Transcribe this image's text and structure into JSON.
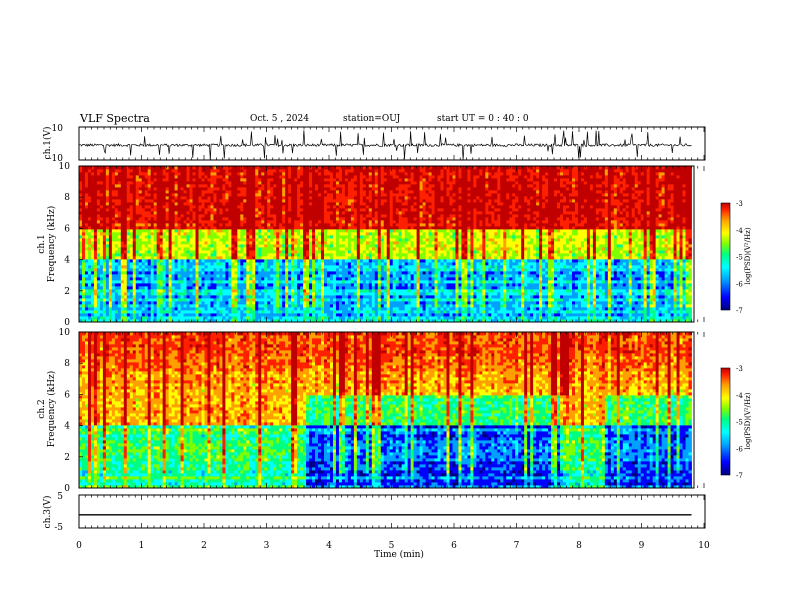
{
  "header": {
    "title": "VLF Spectra",
    "date": "Oct. 5 , 2024",
    "station": "station=OUJ",
    "start": "start  UT =   0 : 40 : 0"
  },
  "colors": {
    "colormap": [
      "#000080",
      "#0000ff",
      "#00a0ff",
      "#00ffff",
      "#00ff80",
      "#80ff00",
      "#ffff00",
      "#ffa000",
      "#ff2000",
      "#c00000"
    ],
    "trace": "#000000"
  },
  "chart_data": [
    {
      "type": "line",
      "ylabel": "ch.1(V)",
      "ylim": [
        -10,
        10
      ],
      "yticks": [
        "10",
        "-10"
      ],
      "baseline": -1,
      "description": "noisy waveform trace around -1 V with spikes"
    },
    {
      "type": "heatmap",
      "ylabel_top": "ch.1",
      "ylabel": "Frequency (kHz)",
      "ylim": [
        0,
        10
      ],
      "yticks": [
        "0",
        "2",
        "4",
        "6",
        "8",
        "10"
      ],
      "colorbar": {
        "label": "log(PSD)(V²/Hz)",
        "range": [
          -7,
          -3
        ],
        "ticks": [
          "-3",
          "-4",
          "-5",
          "-6",
          "-7"
        ]
      },
      "bands": [
        {
          "fmin": 0,
          "fmax": 4,
          "level": -5.8
        },
        {
          "fmin": 4,
          "fmax": 6,
          "level": -4.6
        },
        {
          "fmin": 6,
          "fmax": 10,
          "level": -3.4
        }
      ]
    },
    {
      "type": "heatmap",
      "ylabel_top": "ch.2",
      "ylabel": "Frequency (kHz)",
      "ylim": [
        0,
        10
      ],
      "yticks": [
        "0",
        "2",
        "4",
        "6",
        "8",
        "10"
      ],
      "colorbar": {
        "label": "log(PSD)(V²/Hz)",
        "range": [
          -7,
          -3
        ],
        "ticks": [
          "-3",
          "-4",
          "-5",
          "-6",
          "-7"
        ]
      },
      "segments": [
        {
          "tmin": 0,
          "tmax": 3.65,
          "low_level": -5.2
        },
        {
          "tmin": 3.65,
          "tmax": 7.85,
          "low_level": -6.2
        },
        {
          "tmin": 7.85,
          "tmax": 8.4,
          "low_level": -5.2
        },
        {
          "tmin": 8.4,
          "tmax": 9.8,
          "low_level": -6.2
        }
      ]
    },
    {
      "type": "line",
      "ylabel": "ch.3(V)",
      "ylim": [
        -5,
        5
      ],
      "yticks": [
        "5",
        "-5"
      ],
      "baseline": -1
    }
  ],
  "xaxis": {
    "label": "Time (min)",
    "xlim": [
      0,
      10
    ],
    "ticks": [
      "0",
      "1",
      "2",
      "3",
      "4",
      "5",
      "6",
      "7",
      "8",
      "9",
      "10"
    ],
    "data_end": 9.8
  }
}
